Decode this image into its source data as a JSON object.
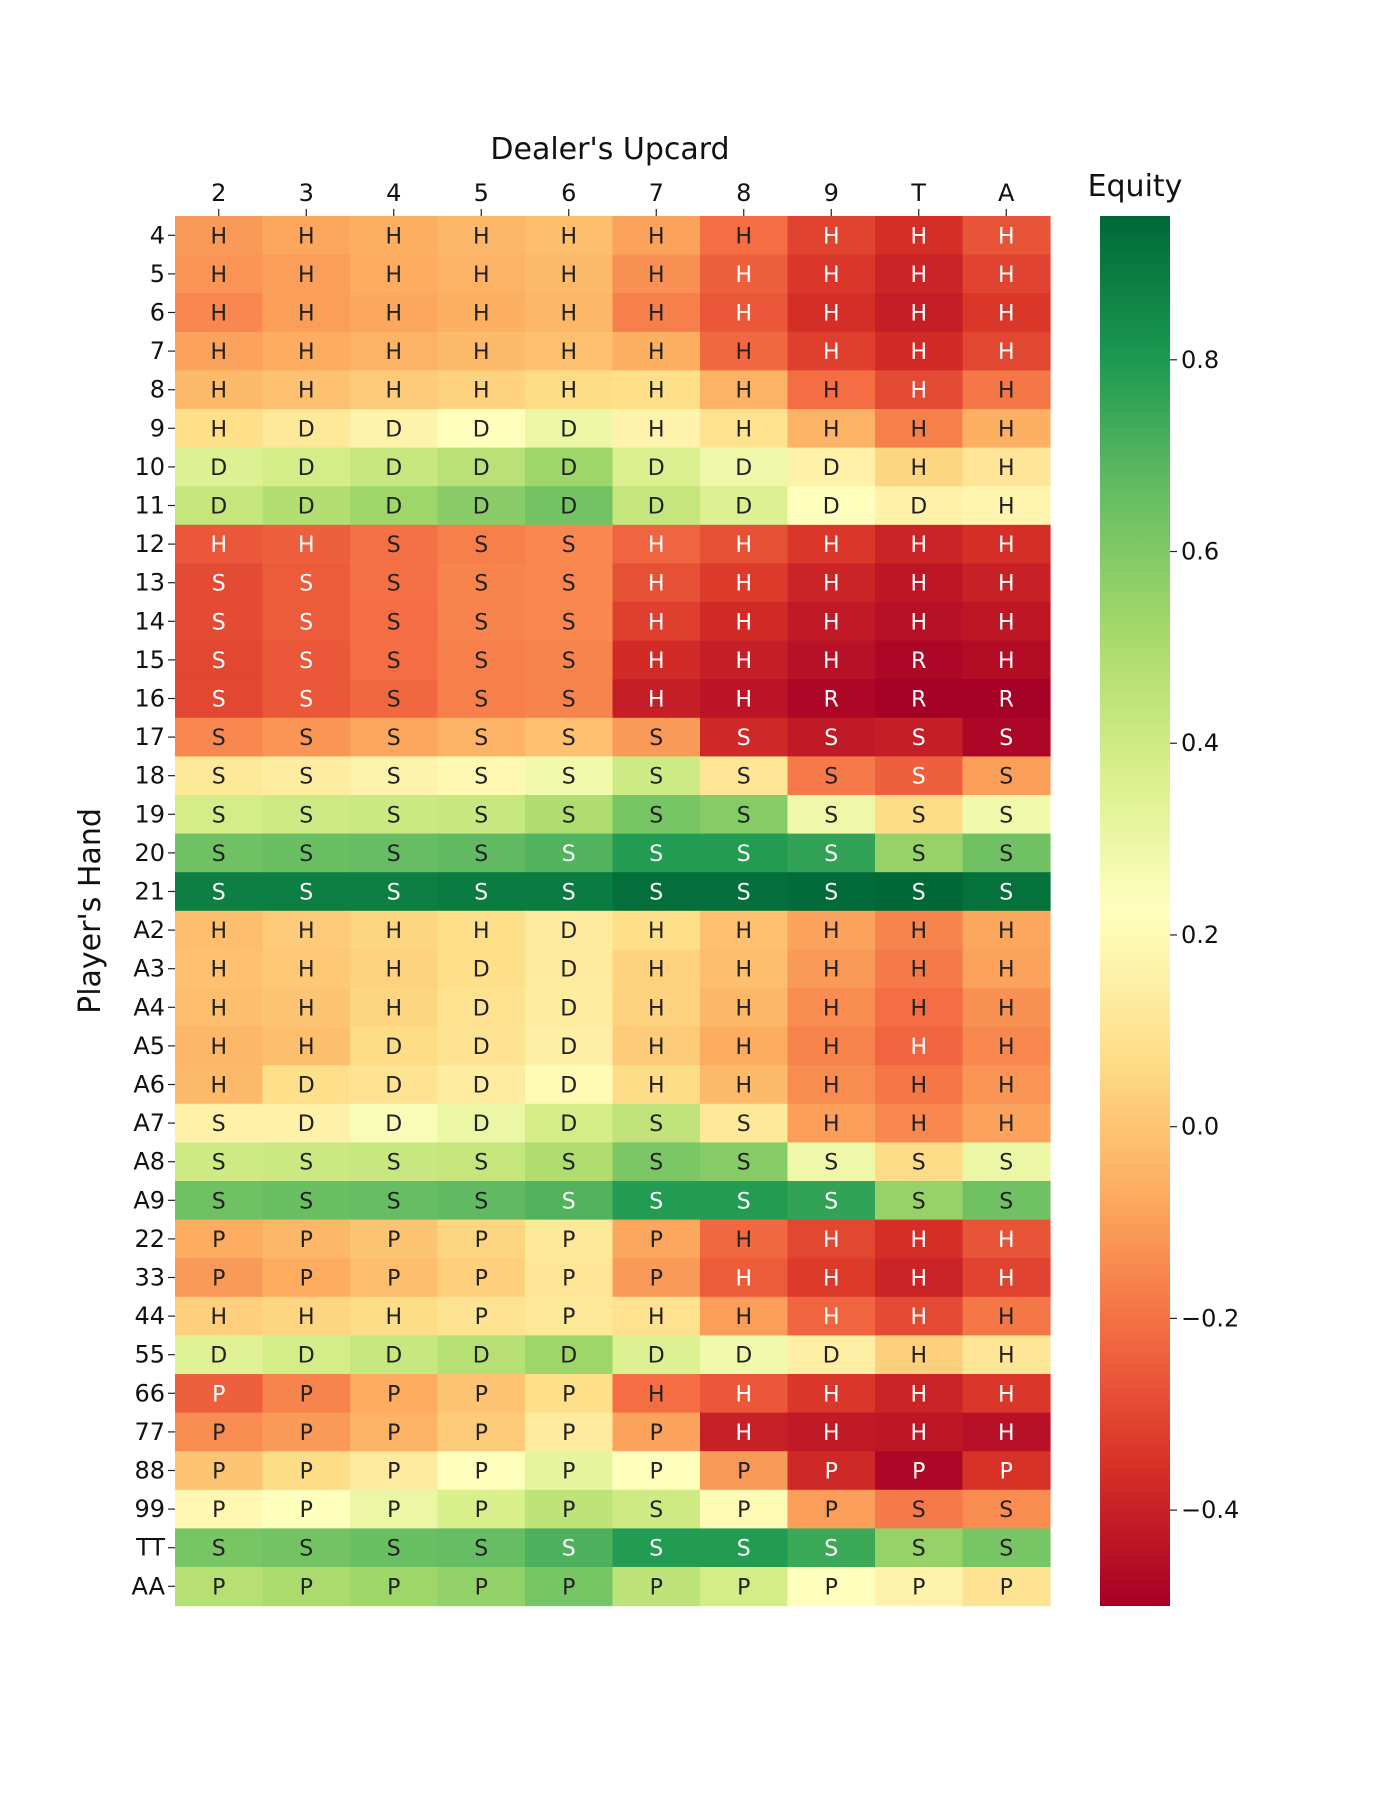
{
  "chart_data": {
    "type": "heatmap",
    "title": "",
    "xlabel": "Dealer's Upcard",
    "ylabel": "Player's Hand",
    "colorbar_label": "Equity",
    "colormap": "RdYlGn",
    "vmin": -0.5,
    "vmax": 0.95,
    "colorbar_ticks": [
      -0.4,
      -0.2,
      0.0,
      0.2,
      0.4,
      0.6,
      0.8
    ],
    "colorbar_tick_labels": [
      "−0.4",
      "−0.2",
      "0.0",
      "0.2",
      "0.4",
      "0.6",
      "0.8"
    ],
    "x_categories": [
      "2",
      "3",
      "4",
      "5",
      "6",
      "7",
      "8",
      "9",
      "T",
      "A"
    ],
    "y_categories": [
      "4",
      "5",
      "6",
      "7",
      "8",
      "9",
      "10",
      "11",
      "12",
      "13",
      "14",
      "15",
      "16",
      "17",
      "18",
      "19",
      "20",
      "21",
      "A2",
      "A3",
      "A4",
      "A5",
      "A6",
      "A7",
      "A8",
      "A9",
      "22",
      "33",
      "44",
      "55",
      "66",
      "77",
      "88",
      "99",
      "TT",
      "AA"
    ],
    "actions": [
      [
        "H",
        "H",
        "H",
        "H",
        "H",
        "H",
        "H",
        "H",
        "H",
        "H"
      ],
      [
        "H",
        "H",
        "H",
        "H",
        "H",
        "H",
        "H",
        "H",
        "H",
        "H"
      ],
      [
        "H",
        "H",
        "H",
        "H",
        "H",
        "H",
        "H",
        "H",
        "H",
        "H"
      ],
      [
        "H",
        "H",
        "H",
        "H",
        "H",
        "H",
        "H",
        "H",
        "H",
        "H"
      ],
      [
        "H",
        "H",
        "H",
        "H",
        "H",
        "H",
        "H",
        "H",
        "H",
        "H"
      ],
      [
        "H",
        "D",
        "D",
        "D",
        "D",
        "H",
        "H",
        "H",
        "H",
        "H"
      ],
      [
        "D",
        "D",
        "D",
        "D",
        "D",
        "D",
        "D",
        "D",
        "H",
        "H"
      ],
      [
        "D",
        "D",
        "D",
        "D",
        "D",
        "D",
        "D",
        "D",
        "D",
        "H"
      ],
      [
        "H",
        "H",
        "S",
        "S",
        "S",
        "H",
        "H",
        "H",
        "H",
        "H"
      ],
      [
        "S",
        "S",
        "S",
        "S",
        "S",
        "H",
        "H",
        "H",
        "H",
        "H"
      ],
      [
        "S",
        "S",
        "S",
        "S",
        "S",
        "H",
        "H",
        "H",
        "H",
        "H"
      ],
      [
        "S",
        "S",
        "S",
        "S",
        "S",
        "H",
        "H",
        "H",
        "R",
        "H"
      ],
      [
        "S",
        "S",
        "S",
        "S",
        "S",
        "H",
        "H",
        "R",
        "R",
        "R"
      ],
      [
        "S",
        "S",
        "S",
        "S",
        "S",
        "S",
        "S",
        "S",
        "S",
        "S"
      ],
      [
        "S",
        "S",
        "S",
        "S",
        "S",
        "S",
        "S",
        "S",
        "S",
        "S"
      ],
      [
        "S",
        "S",
        "S",
        "S",
        "S",
        "S",
        "S",
        "S",
        "S",
        "S"
      ],
      [
        "S",
        "S",
        "S",
        "S",
        "S",
        "S",
        "S",
        "S",
        "S",
        "S"
      ],
      [
        "S",
        "S",
        "S",
        "S",
        "S",
        "S",
        "S",
        "S",
        "S",
        "S"
      ],
      [
        "H",
        "H",
        "H",
        "H",
        "D",
        "H",
        "H",
        "H",
        "H",
        "H"
      ],
      [
        "H",
        "H",
        "H",
        "D",
        "D",
        "H",
        "H",
        "H",
        "H",
        "H"
      ],
      [
        "H",
        "H",
        "H",
        "D",
        "D",
        "H",
        "H",
        "H",
        "H",
        "H"
      ],
      [
        "H",
        "H",
        "D",
        "D",
        "D",
        "H",
        "H",
        "H",
        "H",
        "H"
      ],
      [
        "H",
        "D",
        "D",
        "D",
        "D",
        "H",
        "H",
        "H",
        "H",
        "H"
      ],
      [
        "S",
        "D",
        "D",
        "D",
        "D",
        "S",
        "S",
        "H",
        "H",
        "H"
      ],
      [
        "S",
        "S",
        "S",
        "S",
        "S",
        "S",
        "S",
        "S",
        "S",
        "S"
      ],
      [
        "S",
        "S",
        "S",
        "S",
        "S",
        "S",
        "S",
        "S",
        "S",
        "S"
      ],
      [
        "P",
        "P",
        "P",
        "P",
        "P",
        "P",
        "H",
        "H",
        "H",
        "H"
      ],
      [
        "P",
        "P",
        "P",
        "P",
        "P",
        "P",
        "H",
        "H",
        "H",
        "H"
      ],
      [
        "H",
        "H",
        "H",
        "P",
        "P",
        "H",
        "H",
        "H",
        "H",
        "H"
      ],
      [
        "D",
        "D",
        "D",
        "D",
        "D",
        "D",
        "D",
        "D",
        "H",
        "H"
      ],
      [
        "P",
        "P",
        "P",
        "P",
        "P",
        "H",
        "H",
        "H",
        "H",
        "H"
      ],
      [
        "P",
        "P",
        "P",
        "P",
        "P",
        "P",
        "H",
        "H",
        "H",
        "H"
      ],
      [
        "P",
        "P",
        "P",
        "P",
        "P",
        "P",
        "P",
        "P",
        "P",
        "P"
      ],
      [
        "P",
        "P",
        "P",
        "P",
        "P",
        "S",
        "P",
        "P",
        "S",
        "S"
      ],
      [
        "S",
        "S",
        "S",
        "S",
        "S",
        "S",
        "S",
        "S",
        "S",
        "S"
      ],
      [
        "P",
        "P",
        "P",
        "P",
        "P",
        "P",
        "P",
        "P",
        "P",
        "P"
      ]
    ],
    "equity": [
      [
        -0.11,
        -0.08,
        -0.06,
        -0.04,
        -0.02,
        -0.09,
        -0.21,
        -0.31,
        -0.36,
        -0.27
      ],
      [
        -0.12,
        -0.1,
        -0.07,
        -0.05,
        -0.03,
        -0.13,
        -0.24,
        -0.34,
        -0.39,
        -0.31
      ],
      [
        -0.15,
        -0.1,
        -0.08,
        -0.06,
        -0.04,
        -0.17,
        -0.26,
        -0.36,
        -0.41,
        -0.34
      ],
      [
        -0.09,
        -0.07,
        -0.05,
        -0.03,
        -0.01,
        -0.06,
        -0.22,
        -0.32,
        -0.37,
        -0.3
      ],
      [
        -0.03,
        -0.01,
        0.02,
        0.04,
        0.07,
        0.08,
        -0.05,
        -0.21,
        -0.29,
        -0.19
      ],
      [
        0.08,
        0.12,
        0.17,
        0.22,
        0.3,
        0.17,
        0.09,
        -0.05,
        -0.17,
        -0.06
      ],
      [
        0.35,
        0.38,
        0.42,
        0.46,
        0.53,
        0.36,
        0.29,
        0.16,
        0.05,
        0.11
      ],
      [
        0.43,
        0.48,
        0.53,
        0.58,
        0.63,
        0.43,
        0.35,
        0.23,
        0.16,
        0.18
      ],
      [
        -0.26,
        -0.24,
        -0.2,
        -0.17,
        -0.15,
        -0.23,
        -0.28,
        -0.34,
        -0.39,
        -0.36
      ],
      [
        -0.29,
        -0.25,
        -0.2,
        -0.16,
        -0.15,
        -0.28,
        -0.33,
        -0.39,
        -0.43,
        -0.4
      ],
      [
        -0.29,
        -0.25,
        -0.21,
        -0.16,
        -0.15,
        -0.32,
        -0.37,
        -0.42,
        -0.45,
        -0.43
      ],
      [
        -0.3,
        -0.26,
        -0.21,
        -0.17,
        -0.16,
        -0.37,
        -0.41,
        -0.45,
        -0.48,
        -0.46
      ],
      [
        -0.3,
        -0.26,
        -0.22,
        -0.17,
        -0.16,
        -0.41,
        -0.44,
        -0.48,
        -0.5,
        -0.5
      ],
      [
        -0.15,
        -0.12,
        -0.08,
        -0.05,
        -0.01,
        -0.11,
        -0.38,
        -0.42,
        -0.41,
        -0.48
      ],
      [
        0.12,
        0.14,
        0.17,
        0.19,
        0.28,
        0.4,
        0.11,
        -0.18,
        -0.24,
        -0.1
      ],
      [
        0.38,
        0.4,
        0.41,
        0.42,
        0.49,
        0.62,
        0.59,
        0.29,
        0.07,
        0.28
      ],
      [
        0.64,
        0.65,
        0.66,
        0.67,
        0.7,
        0.79,
        0.79,
        0.76,
        0.55,
        0.64
      ],
      [
        0.88,
        0.88,
        0.88,
        0.89,
        0.89,
        0.93,
        0.93,
        0.94,
        0.95,
        0.92
      ],
      [
        -0.02,
        0.02,
        0.05,
        0.08,
        0.13,
        0.08,
        -0.01,
        -0.09,
        -0.16,
        -0.08
      ],
      [
        -0.01,
        0.01,
        0.04,
        0.08,
        0.13,
        0.04,
        -0.02,
        -0.11,
        -0.18,
        -0.09
      ],
      [
        -0.02,
        0.0,
        0.05,
        0.09,
        0.14,
        0.04,
        -0.04,
        -0.14,
        -0.21,
        -0.13
      ],
      [
        -0.04,
        -0.02,
        0.07,
        0.1,
        0.15,
        0.02,
        -0.07,
        -0.16,
        -0.23,
        -0.15
      ],
      [
        -0.03,
        0.08,
        0.1,
        0.14,
        0.2,
        0.07,
        -0.03,
        -0.14,
        -0.19,
        -0.12
      ],
      [
        0.16,
        0.16,
        0.25,
        0.3,
        0.38,
        0.44,
        0.12,
        -0.1,
        -0.15,
        -0.09
      ],
      [
        0.4,
        0.41,
        0.42,
        0.43,
        0.49,
        0.61,
        0.59,
        0.29,
        0.07,
        0.3
      ],
      [
        0.64,
        0.65,
        0.66,
        0.67,
        0.7,
        0.79,
        0.79,
        0.76,
        0.55,
        0.64
      ],
      [
        -0.07,
        -0.04,
        0.0,
        0.05,
        0.12,
        -0.08,
        -0.22,
        -0.3,
        -0.36,
        -0.27
      ],
      [
        -0.11,
        -0.07,
        -0.02,
        0.03,
        0.11,
        -0.11,
        -0.25,
        -0.33,
        -0.39,
        -0.31
      ],
      [
        0.03,
        0.05,
        0.07,
        0.1,
        0.12,
        0.09,
        -0.1,
        -0.23,
        -0.29,
        -0.19
      ],
      [
        0.34,
        0.38,
        0.42,
        0.47,
        0.53,
        0.35,
        0.28,
        0.15,
        0.03,
        0.11
      ],
      [
        -0.24,
        -0.16,
        -0.07,
        0.0,
        0.08,
        -0.21,
        -0.26,
        -0.34,
        -0.39,
        -0.34
      ],
      [
        -0.14,
        -0.11,
        -0.05,
        0.02,
        0.13,
        -0.09,
        -0.4,
        -0.42,
        -0.43,
        -0.45
      ],
      [
        0.0,
        0.07,
        0.13,
        0.23,
        0.32,
        0.23,
        -0.11,
        -0.38,
        -0.48,
        -0.35
      ],
      [
        0.19,
        0.23,
        0.3,
        0.37,
        0.45,
        0.4,
        0.2,
        -0.1,
        -0.18,
        -0.14
      ],
      [
        0.62,
        0.63,
        0.65,
        0.66,
        0.71,
        0.79,
        0.79,
        0.74,
        0.55,
        0.62
      ],
      [
        0.47,
        0.5,
        0.53,
        0.56,
        0.62,
        0.45,
        0.38,
        0.23,
        0.17,
        0.1
      ]
    ]
  }
}
